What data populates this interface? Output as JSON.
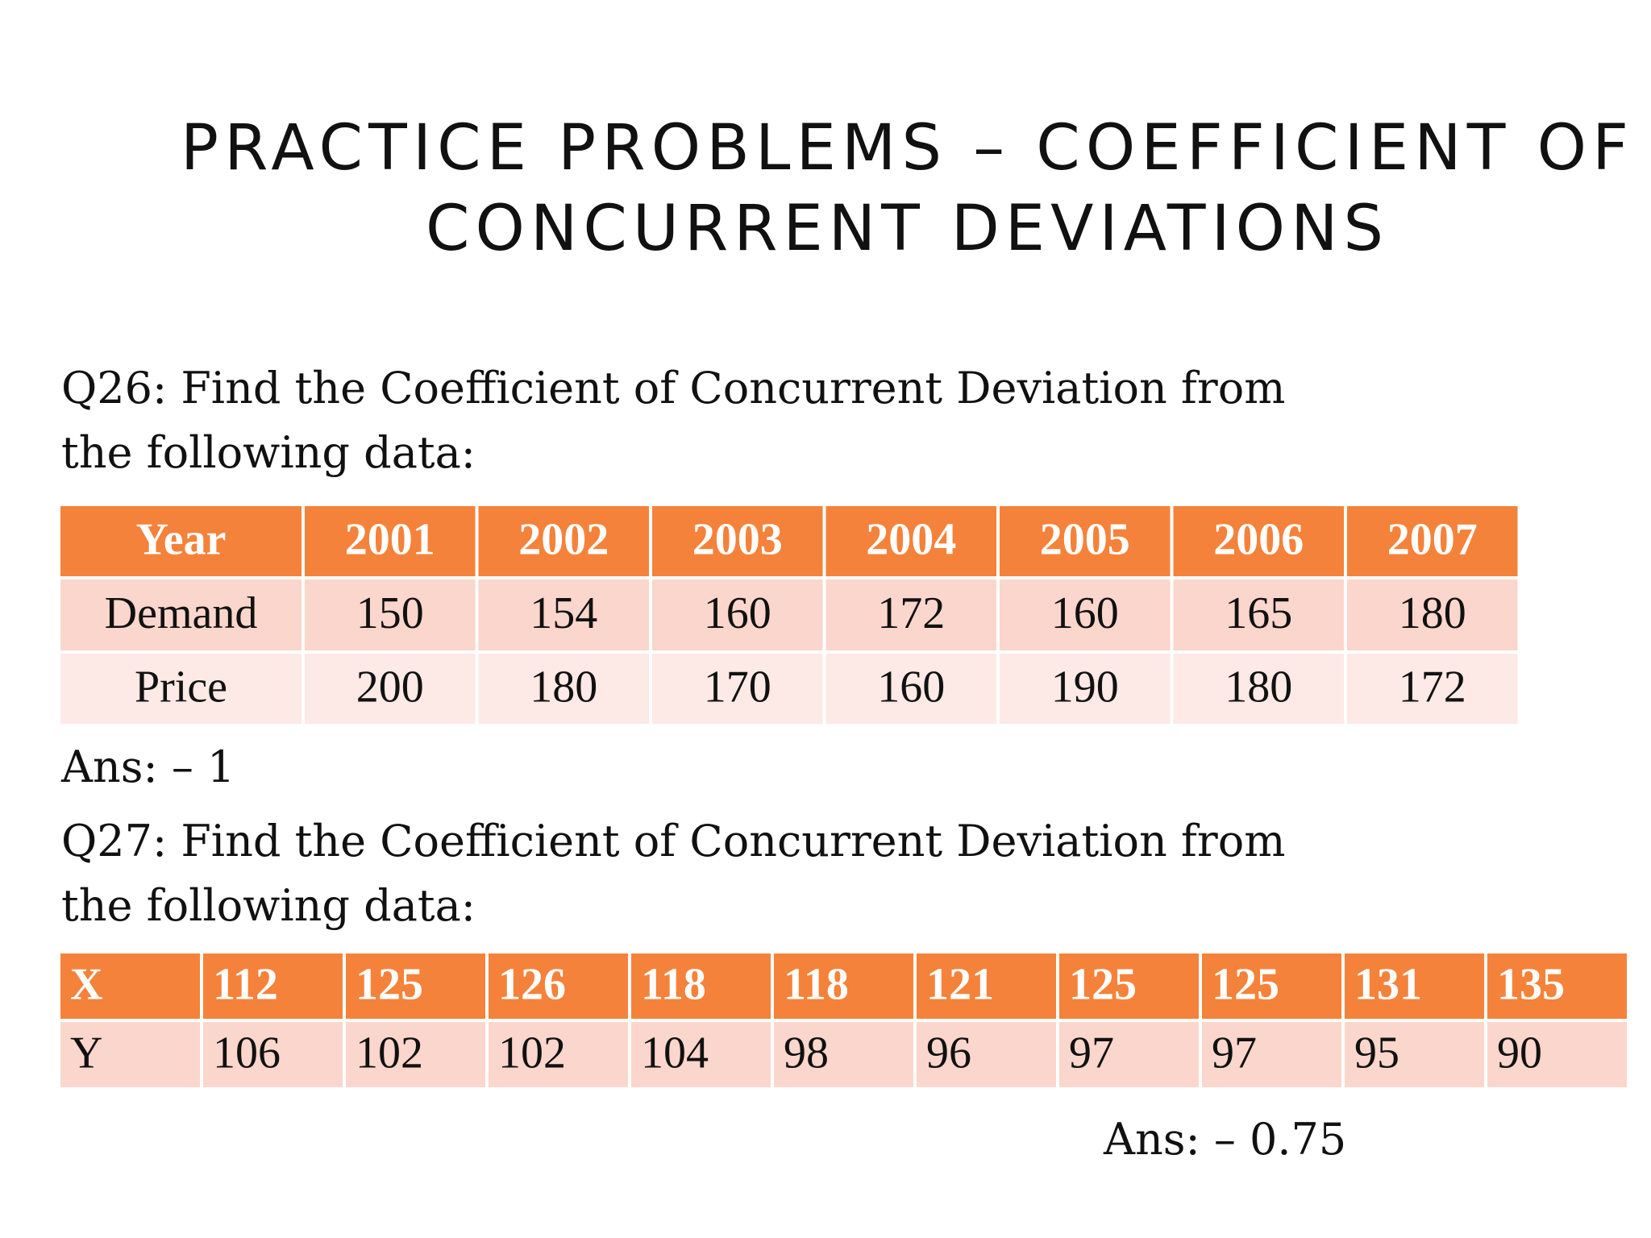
{
  "title": [
    "PRACTICE PROBLEMS – COEFFICIENT OF",
    "CONCURRENT DEVIATIONS"
  ],
  "questions": [
    {
      "text": [
        "Q26: Find the Coefficient of Concurrent Deviation from",
        "the following data:"
      ],
      "table": {
        "header": [
          "Year",
          2001,
          2002,
          2003,
          2004,
          2005,
          2006,
          2007
        ],
        "rows": [
          [
            "Demand",
            150,
            154,
            160,
            172,
            160,
            165,
            180
          ],
          [
            "Price",
            200,
            180,
            170,
            160,
            190,
            180,
            172
          ]
        ]
      },
      "answer": "Ans: – 1"
    },
    {
      "text": [
        "Q27: Find the Coefficient of Concurrent Deviation from",
        "the following data:"
      ],
      "table": {
        "header": [
          "X",
          112,
          125,
          126,
          118,
          118,
          121,
          125,
          125,
          131,
          135
        ],
        "rows": [
          [
            "Y",
            106,
            102,
            102,
            104,
            98,
            96,
            97,
            97,
            95,
            90
          ]
        ]
      },
      "answer": "Ans: – 0.75"
    }
  ]
}
